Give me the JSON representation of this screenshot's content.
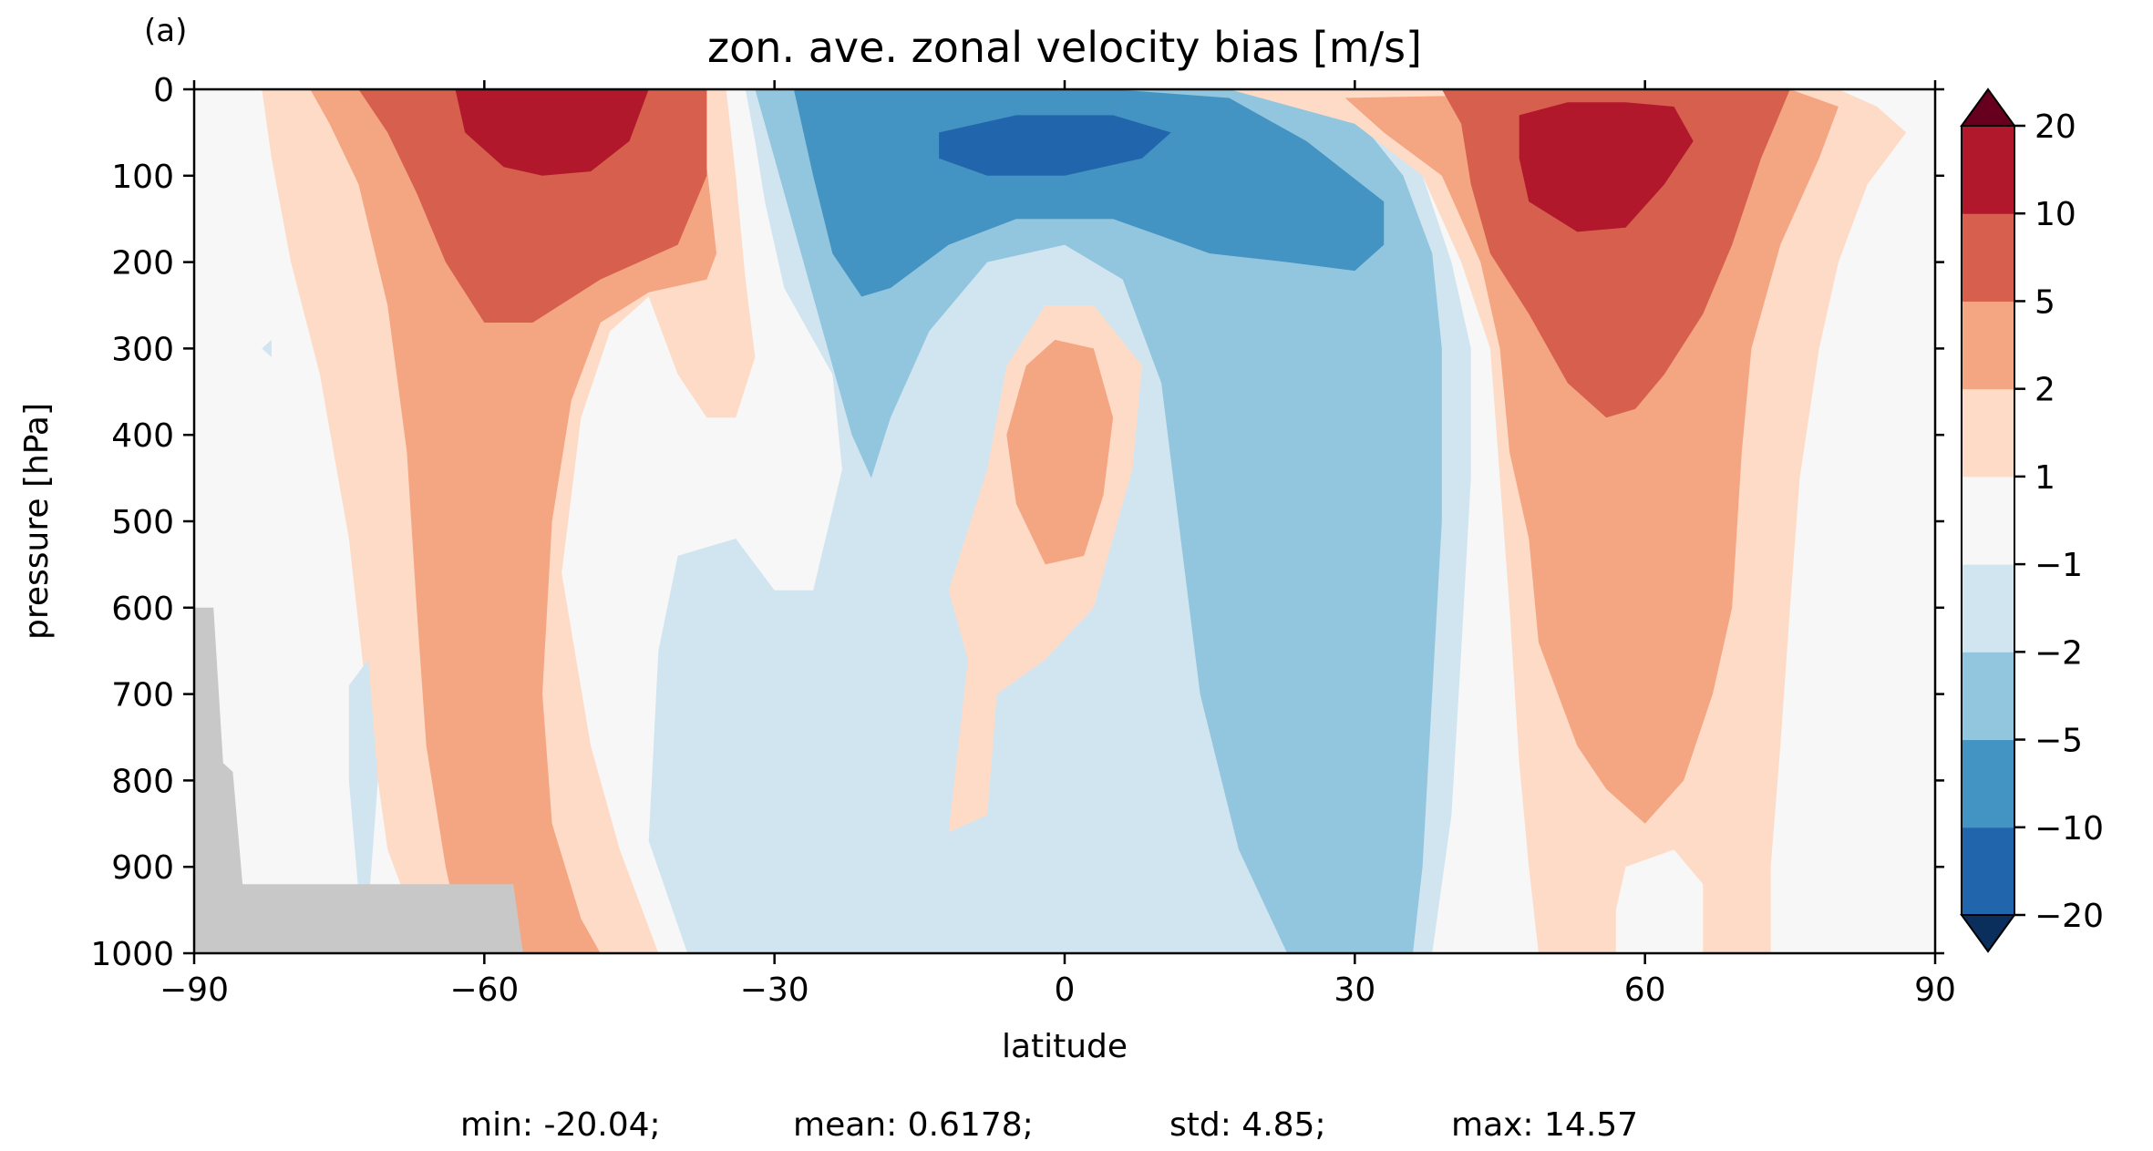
{
  "chart_data": {
    "type": "heatmap",
    "panel_label": "(a)",
    "title": "zon. ave. zonal velocity bias [m/s]",
    "xlabel": "latitude",
    "ylabel": "pressure [hPa]",
    "xlim": [
      -90,
      90
    ],
    "ylim": [
      1000,
      0
    ],
    "y_inverted": true,
    "x_ticks": [
      -90,
      -60,
      -30,
      0,
      30,
      60,
      90
    ],
    "x_tick_labels": [
      "−90",
      "−60",
      "−30",
      "0",
      "30",
      "60",
      "90"
    ],
    "y_ticks": [
      0,
      100,
      200,
      300,
      400,
      500,
      600,
      700,
      800,
      900,
      1000
    ],
    "y_tick_labels": [
      "0",
      "100",
      "200",
      "300",
      "400",
      "500",
      "600",
      "700",
      "800",
      "900",
      "1000"
    ],
    "colorbar": {
      "extend": "both",
      "levels": [
        -20,
        -10,
        -5,
        -2,
        -1,
        1,
        2,
        5,
        10,
        20
      ],
      "tick_labels": [
        "−20",
        "−10",
        "−5",
        "−2",
        "−1",
        "1",
        "2",
        "5",
        "10",
        "20"
      ],
      "colors": [
        "#0b2f5c",
        "#2166ac",
        "#4393c3",
        "#92c5de",
        "#d1e5f0",
        "#f7f7f7",
        "#fddbc7",
        "#f4a582",
        "#d6604d",
        "#b2182b",
        "#67001f"
      ]
    },
    "colors": {
      "neutral": "#f7f7f7",
      "neg_1": "#d1e5f0",
      "neg_2": "#92c5de",
      "neg_5": "#4393c3",
      "neg_10": "#2166ac",
      "pos_1": "#fddbc7",
      "pos_2": "#f4a582",
      "pos_5": "#d6604d",
      "pos_10": "#b2182b",
      "topography_mask": "#c8c8c8"
    },
    "regions": [
      {
        "level": "pos_1",
        "points": [
          [
            -83,
            0
          ],
          [
            -35,
            0
          ],
          [
            -34,
            100
          ],
          [
            -33,
            220
          ],
          [
            -32,
            310
          ],
          [
            -34,
            380
          ],
          [
            -37,
            380
          ],
          [
            -40,
            330
          ],
          [
            -43,
            240
          ],
          [
            -47,
            280
          ],
          [
            -50,
            380
          ],
          [
            -52,
            560
          ],
          [
            -49,
            760
          ],
          [
            -46,
            880
          ],
          [
            -42,
            1000
          ],
          [
            -60,
            1000
          ],
          [
            -66,
            1000
          ],
          [
            -70,
            880
          ],
          [
            -72,
            720
          ],
          [
            -74,
            520
          ],
          [
            -77,
            330
          ],
          [
            -80,
            200
          ],
          [
            -82,
            80
          ]
        ]
      },
      {
        "level": "pos_2",
        "points": [
          [
            -78,
            0
          ],
          [
            -37,
            0
          ],
          [
            -37,
            90
          ],
          [
            -36,
            190
          ],
          [
            -37,
            220
          ],
          [
            -43,
            235
          ],
          [
            -48,
            270
          ],
          [
            -51,
            360
          ],
          [
            -53,
            500
          ],
          [
            -54,
            700
          ],
          [
            -53,
            850
          ],
          [
            -50,
            960
          ],
          [
            -48,
            1000
          ],
          [
            -62,
            1000
          ],
          [
            -64,
            900
          ],
          [
            -66,
            760
          ],
          [
            -67,
            600
          ],
          [
            -68,
            420
          ],
          [
            -70,
            250
          ],
          [
            -73,
            110
          ],
          [
            -76,
            40
          ]
        ]
      },
      {
        "level": "pos_5",
        "points": [
          [
            -73,
            0
          ],
          [
            -37,
            0
          ],
          [
            -37,
            100
          ],
          [
            -40,
            180
          ],
          [
            -48,
            220
          ],
          [
            -55,
            270
          ],
          [
            -60,
            270
          ],
          [
            -64,
            200
          ],
          [
            -67,
            120
          ],
          [
            -70,
            50
          ]
        ]
      },
      {
        "level": "pos_10",
        "points": [
          [
            -63,
            0
          ],
          [
            -43,
            0
          ],
          [
            -45,
            60
          ],
          [
            -49,
            95
          ],
          [
            -54,
            100
          ],
          [
            -58,
            90
          ],
          [
            -62,
            50
          ]
        ]
      },
      {
        "level": "neg_1",
        "points": [
          [
            -33,
            0
          ],
          [
            -8,
            0
          ],
          [
            5,
            0
          ],
          [
            22,
            0
          ],
          [
            32,
            30
          ],
          [
            37,
            100
          ],
          [
            40,
            200
          ],
          [
            42,
            300
          ],
          [
            42,
            450
          ],
          [
            41,
            650
          ],
          [
            40,
            840
          ],
          [
            38,
            1000
          ],
          [
            -39,
            1000
          ],
          [
            -43,
            870
          ],
          [
            -42,
            650
          ],
          [
            -40,
            540
          ],
          [
            -34,
            520
          ],
          [
            -30,
            580
          ],
          [
            -26,
            580
          ],
          [
            -23,
            440
          ],
          [
            -24,
            330
          ],
          [
            -29,
            230
          ],
          [
            -31,
            130
          ],
          [
            -32,
            60
          ]
        ]
      },
      {
        "level": "neg_2",
        "points": [
          [
            -32,
            0
          ],
          [
            -8,
            0
          ],
          [
            5,
            0
          ],
          [
            20,
            0
          ],
          [
            30,
            30
          ],
          [
            35,
            100
          ],
          [
            38,
            190
          ],
          [
            39,
            300
          ],
          [
            39,
            500
          ],
          [
            38,
            700
          ],
          [
            37,
            900
          ],
          [
            36,
            1000
          ],
          [
            23,
            1000
          ],
          [
            18,
            880
          ],
          [
            14,
            700
          ],
          [
            12,
            520
          ],
          [
            11,
            430
          ],
          [
            10,
            340
          ],
          [
            6,
            220
          ],
          [
            0,
            180
          ],
          [
            -8,
            200
          ],
          [
            -14,
            280
          ],
          [
            -18,
            380
          ],
          [
            -20,
            450
          ],
          [
            -22,
            400
          ],
          [
            -25,
            280
          ],
          [
            -28,
            160
          ],
          [
            -30,
            80
          ]
        ]
      },
      {
        "level": "neg_5",
        "points": [
          [
            -28,
            0
          ],
          [
            -12,
            0
          ],
          [
            5,
            0
          ],
          [
            17,
            10
          ],
          [
            25,
            60
          ],
          [
            33,
            130
          ],
          [
            33,
            180
          ],
          [
            30,
            210
          ],
          [
            23,
            200
          ],
          [
            15,
            190
          ],
          [
            5,
            150
          ],
          [
            -5,
            150
          ],
          [
            -12,
            180
          ],
          [
            -18,
            230
          ],
          [
            -21,
            240
          ],
          [
            -24,
            190
          ],
          [
            -26,
            100
          ]
        ]
      },
      {
        "level": "neg_10",
        "points": [
          [
            -13,
            50
          ],
          [
            -5,
            30
          ],
          [
            5,
            30
          ],
          [
            11,
            50
          ],
          [
            8,
            80
          ],
          [
            0,
            100
          ],
          [
            -8,
            100
          ],
          [
            -13,
            80
          ]
        ]
      },
      {
        "level": "pos_1",
        "points": [
          [
            -10,
            660
          ],
          [
            -12,
            580
          ],
          [
            -8,
            440
          ],
          [
            -6,
            320
          ],
          [
            -2,
            250
          ],
          [
            3,
            250
          ],
          [
            8,
            320
          ],
          [
            7,
            440
          ],
          [
            3,
            600
          ],
          [
            -2,
            660
          ],
          [
            -7,
            700
          ],
          [
            -8,
            840
          ],
          [
            -12,
            860
          ]
        ]
      },
      {
        "level": "pos_2",
        "points": [
          [
            -6,
            400
          ],
          [
            -4,
            320
          ],
          [
            -1,
            290
          ],
          [
            3,
            300
          ],
          [
            5,
            380
          ],
          [
            4,
            470
          ],
          [
            2,
            540
          ],
          [
            -2,
            550
          ],
          [
            -5,
            480
          ]
        ]
      },
      {
        "level": "neg_1",
        "points": [
          [
            -2,
            880
          ],
          [
            0,
            860
          ],
          [
            3,
            840
          ],
          [
            5,
            900
          ],
          [
            4,
            960
          ],
          [
            0,
            980
          ],
          [
            -2,
            940
          ]
        ]
      },
      {
        "level": "pos_1",
        "points": [
          [
            17,
            0
          ],
          [
            80,
            0
          ],
          [
            84,
            20
          ],
          [
            87,
            50
          ],
          [
            83,
            110
          ],
          [
            80,
            200
          ],
          [
            78,
            300
          ],
          [
            76,
            450
          ],
          [
            75,
            600
          ],
          [
            74,
            760
          ],
          [
            73,
            900
          ],
          [
            73,
            1000
          ],
          [
            49,
            1000
          ],
          [
            48,
            900
          ],
          [
            47,
            780
          ],
          [
            46,
            600
          ],
          [
            45,
            450
          ],
          [
            44,
            300
          ],
          [
            41,
            200
          ],
          [
            37,
            100
          ],
          [
            30,
            40
          ]
        ]
      },
      {
        "level": "pos_2",
        "points": [
          [
            29,
            10
          ],
          [
            75,
            0
          ],
          [
            80,
            20
          ],
          [
            78,
            80
          ],
          [
            74,
            180
          ],
          [
            71,
            300
          ],
          [
            70,
            420
          ],
          [
            69,
            600
          ],
          [
            67,
            700
          ],
          [
            64,
            800
          ],
          [
            60,
            850
          ],
          [
            56,
            810
          ],
          [
            53,
            760
          ],
          [
            49,
            640
          ],
          [
            48,
            520
          ],
          [
            46,
            420
          ],
          [
            45,
            300
          ],
          [
            43,
            200
          ],
          [
            39,
            100
          ],
          [
            33,
            50
          ]
        ]
      },
      {
        "level": "pos_5",
        "points": [
          [
            39,
            0
          ],
          [
            75,
            0
          ],
          [
            72,
            80
          ],
          [
            69,
            180
          ],
          [
            66,
            260
          ],
          [
            62,
            330
          ],
          [
            59,
            370
          ],
          [
            56,
            380
          ],
          [
            52,
            340
          ],
          [
            48,
            260
          ],
          [
            44,
            190
          ],
          [
            42,
            110
          ],
          [
            41,
            40
          ]
        ]
      },
      {
        "level": "pos_10",
        "points": [
          [
            47,
            30
          ],
          [
            52,
            15
          ],
          [
            58,
            15
          ],
          [
            63,
            20
          ],
          [
            65,
            60
          ],
          [
            62,
            110
          ],
          [
            58,
            160
          ],
          [
            53,
            165
          ],
          [
            48,
            130
          ],
          [
            47,
            80
          ]
        ]
      },
      {
        "level": "neutral",
        "points": [
          [
            58,
            900
          ],
          [
            63,
            880
          ],
          [
            66,
            920
          ],
          [
            66,
            1000
          ],
          [
            57,
            1000
          ],
          [
            57,
            950
          ]
        ]
      },
      {
        "level": "neg_1",
        "points": [
          [
            -83,
            300
          ],
          [
            -82,
            290
          ],
          [
            -82,
            310
          ]
        ]
      },
      {
        "level": "neg_1",
        "points": [
          [
            -74,
            690
          ],
          [
            -72,
            660
          ],
          [
            -71,
            800
          ],
          [
            -72,
            950
          ],
          [
            -73,
            930
          ],
          [
            -74,
            800
          ]
        ]
      }
    ],
    "masks": [
      {
        "name": "topography",
        "points": [
          [
            -90,
            600
          ],
          [
            -88,
            600
          ],
          [
            -87,
            780
          ],
          [
            -86,
            790
          ],
          [
            -85,
            920
          ],
          [
            -57,
            920
          ],
          [
            -56,
            1000
          ],
          [
            -90,
            1000
          ]
        ]
      }
    ]
  },
  "stats": {
    "min": "min: -20.04;",
    "mean": "mean: 0.6178;",
    "std": "std: 4.85;",
    "max": "max: 14.57"
  }
}
